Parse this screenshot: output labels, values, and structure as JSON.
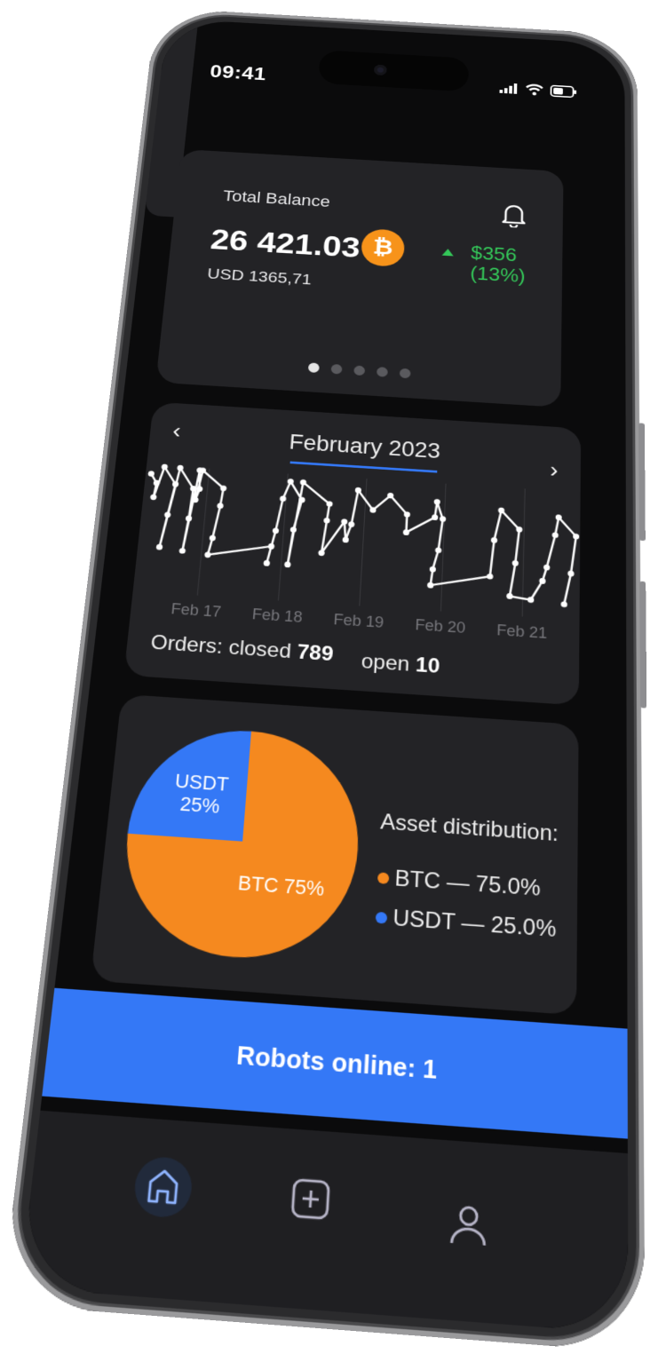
{
  "status": {
    "time": "09:41"
  },
  "balance": {
    "label": "Total Balance",
    "amount": "26 421.03",
    "coin_icon": "bitcoin-icon",
    "coin_symbol": "₿",
    "usd": "USD 1365,71",
    "change": "$356 (13%)",
    "change_direction": "up",
    "pages": 5,
    "active_page": 1
  },
  "chart": {
    "month": "February 2023",
    "prev_icon": "‹",
    "next_icon": "›",
    "orders_label": "Orders: closed",
    "closed": "789",
    "open_label": "open",
    "open": "10"
  },
  "chart_data": {
    "type": "line",
    "title": "February 2023",
    "x_ticks": [
      "Feb 17",
      "Feb 18",
      "Feb 19",
      "Feb 20",
      "Feb 21"
    ],
    "x_tick_values": [
      17,
      18,
      19,
      20,
      21
    ],
    "xlim": [
      16.2,
      21.7
    ],
    "ylim": [
      0,
      100
    ],
    "grid": "vertical",
    "color": "#ffffff",
    "x": [
      16.27,
      16.35,
      16.33,
      16.43,
      16.59,
      16.53,
      16.47,
      16.63,
      16.82,
      16.8,
      16.76,
      16.88,
      16.9,
      16.86,
      16.92,
      17.2,
      17.18,
      17.12,
      17.08,
      17.86,
      17.82,
      17.9,
      17.96,
      18.04,
      18.2,
      18.12,
      18.08,
      18.2,
      18.55,
      18.53,
      18.49,
      18.75,
      18.78,
      18.84,
      18.9,
      19.1,
      19.31,
      19.53,
      19.53,
      19.88,
      19.9,
      19.98,
      19.94,
      19.88,
      19.86,
      20.59,
      20.63,
      20.71,
      20.94,
      20.9,
      20.84,
      21.1,
      21.24,
      21.29,
      21.39,
      21.43,
      21.65,
      21.59,
      21.51
    ],
    "y": [
      92,
      84,
      71,
      99,
      84,
      56,
      27,
      99,
      81,
      54,
      25,
      98,
      81,
      71,
      98,
      83,
      67,
      38,
      23,
      34,
      19,
      48,
      77,
      93,
      77,
      50,
      19,
      93,
      75,
      60,
      31,
      60,
      44,
      58,
      89,
      72,
      86,
      70,
      54,
      69,
      83,
      68,
      40,
      23,
      9,
      20,
      52,
      79,
      63,
      33,
      4,
      2,
      19,
      31,
      60,
      76,
      60,
      27,
      0
    ]
  },
  "assets": {
    "title": "Asset distribution:",
    "chart_data": {
      "type": "pie",
      "slices": [
        {
          "name": "BTC",
          "value": 75,
          "label": "BTC 75%",
          "legend": "BTC — 75.0%",
          "color": "#f5891f"
        },
        {
          "name": "USDT",
          "value": 25,
          "label_line1": "USDT",
          "label_line2": "25%",
          "legend": "USDT — 25.0%",
          "color": "#3478f6"
        }
      ]
    }
  },
  "robots": {
    "label": "Robots online: 1"
  },
  "tabs": [
    {
      "icon": "home-icon",
      "active": true
    },
    {
      "icon": "plus-square-icon",
      "active": false
    },
    {
      "icon": "user-icon",
      "active": false
    }
  ],
  "colors": {
    "accent": "#3478f6",
    "positive": "#34c759",
    "btc": "#f7931a",
    "card": "#232326"
  }
}
